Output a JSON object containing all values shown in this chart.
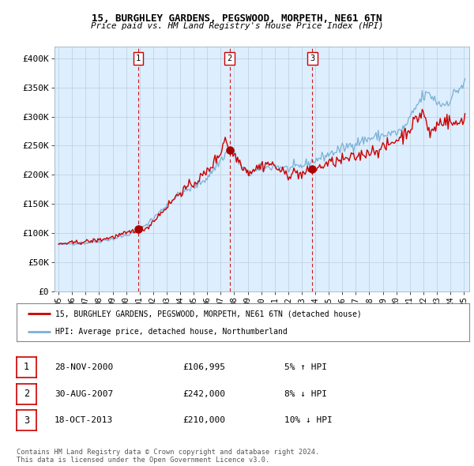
{
  "title": "15, BURGHLEY GARDENS, PEGSWOOD, MORPETH, NE61 6TN",
  "subtitle": "Price paid vs. HM Land Registry's House Price Index (HPI)",
  "xlim_start": 1994.7,
  "xlim_end": 2025.4,
  "ylim": [
    0,
    420000
  ],
  "yticks": [
    0,
    50000,
    100000,
    150000,
    200000,
    250000,
    300000,
    350000,
    400000
  ],
  "ytick_labels": [
    "£0",
    "£50K",
    "£100K",
    "£150K",
    "£200K",
    "£250K",
    "£300K",
    "£350K",
    "£400K"
  ],
  "sale_color": "#cc0000",
  "hpi_color": "#7ab0d4",
  "vline_color": "#cc0000",
  "marker_color": "#aa0000",
  "plot_bg": "#ddeeff",
  "sale_points": [
    {
      "year": 2000.91,
      "price": 106995,
      "label": "1"
    },
    {
      "year": 2007.66,
      "price": 242000,
      "label": "2"
    },
    {
      "year": 2013.79,
      "price": 210000,
      "label": "3"
    }
  ],
  "legend_sale_label": "15, BURGHLEY GARDENS, PEGSWOOD, MORPETH, NE61 6TN (detached house)",
  "legend_hpi_label": "HPI: Average price, detached house, Northumberland",
  "table_rows": [
    {
      "num": "1",
      "date": "28-NOV-2000",
      "price": "£106,995",
      "pct": "5% ↑ HPI"
    },
    {
      "num": "2",
      "date": "30-AUG-2007",
      "price": "£242,000",
      "pct": "8% ↓ HPI"
    },
    {
      "num": "3",
      "date": "18-OCT-2013",
      "price": "£210,000",
      "pct": "10% ↓ HPI"
    }
  ],
  "footer": "Contains HM Land Registry data © Crown copyright and database right 2024.\nThis data is licensed under the Open Government Licence v3.0.",
  "background_color": "#ffffff",
  "grid_color": "#bbccdd"
}
